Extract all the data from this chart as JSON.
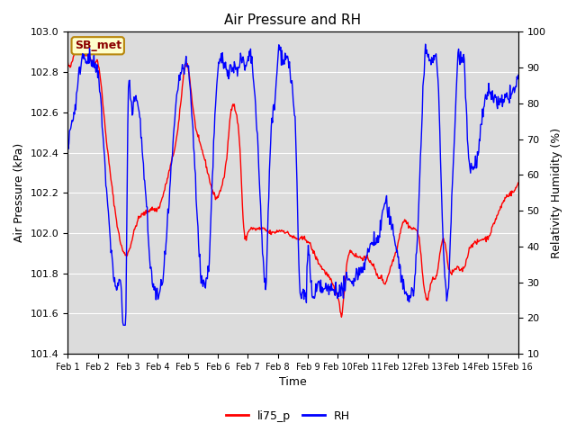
{
  "title": "Air Pressure and RH",
  "xlabel": "Time",
  "ylabel_left": "Air Pressure (kPa)",
  "ylabel_right": "Relativity Humidity (%)",
  "ylim_left": [
    101.4,
    103.0
  ],
  "ylim_right": [
    10,
    100
  ],
  "yticks_left": [
    101.4,
    101.6,
    101.8,
    102.0,
    102.2,
    102.4,
    102.6,
    102.8,
    103.0
  ],
  "yticks_right": [
    10,
    20,
    30,
    40,
    50,
    60,
    70,
    80,
    90,
    100
  ],
  "xtick_labels": [
    "Feb 1",
    "Feb 2",
    "Feb 3",
    "Feb 4",
    "Feb 5",
    "Feb 6",
    "Feb 7",
    "Feb 8",
    "Feb 9",
    "Feb 10",
    "Feb 11",
    "Feb 12",
    "Feb 13",
    "Feb 14",
    "Feb 15",
    "Feb 16"
  ],
  "station_label": "SB_met",
  "legend_labels": [
    "li75_p",
    "RH"
  ],
  "line_colors": [
    "red",
    "blue"
  ],
  "bg_color": "#dcdcdc",
  "title_fontsize": 11,
  "label_fontsize": 9,
  "tick_fontsize": 8,
  "legend_fontsize": 9,
  "station_fontsize": 9
}
